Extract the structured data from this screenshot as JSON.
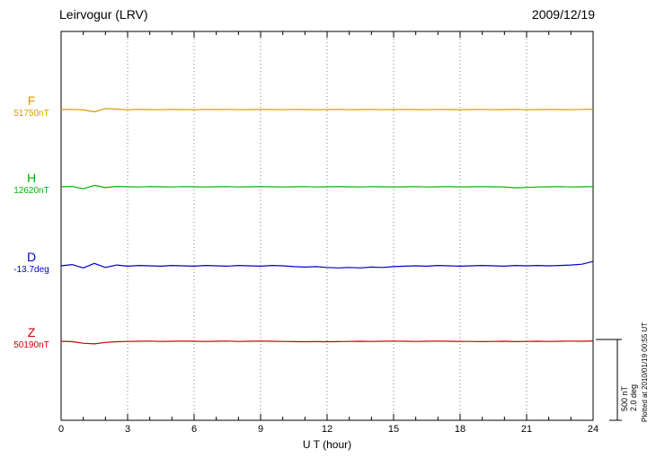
{
  "header": {
    "title": "Leirvogur (LRV)",
    "date": "2009/12/19"
  },
  "axis": {
    "xlabel": "U T (hour)",
    "xtick_labels": [
      "0",
      "3",
      "6",
      "9",
      "12",
      "15",
      "18",
      "21",
      "24"
    ]
  },
  "series_labels": [
    {
      "key": "F",
      "label": "F",
      "value": "51750nT",
      "color": "#DD9900"
    },
    {
      "key": "H",
      "label": "H",
      "value": "12620nT",
      "color": "#00B200"
    },
    {
      "key": "D",
      "label": "D",
      "value": "-13.7deg",
      "color": "#0000CC"
    },
    {
      "key": "Z",
      "label": "Z",
      "value": "50190nT",
      "color": "#CC0000"
    }
  ],
  "scale_bar": {
    "labels": [
      "500 nT",
      "2.0 deg"
    ]
  },
  "footer_note": "Plotted at 2010/01/19 00:55 UT",
  "chart_data": {
    "type": "line",
    "title": "Leirvogur (LRV) magnetogram 2009/12/19",
    "xlabel": "U T (hour)",
    "xlim": [
      0,
      24
    ],
    "xticks": [
      0,
      3,
      6,
      9,
      12,
      15,
      18,
      21,
      24
    ],
    "grid": "vertical-dotted",
    "legend_position": "left-margin",
    "x_step": 0.5,
    "scale_reference": {
      "nT_per_bar": 500,
      "deg_per_bar": 2.0
    },
    "series": [
      {
        "name": "F",
        "unit": "nT",
        "mean": 51750,
        "color": "#DD9900",
        "offsets": [
          0,
          1,
          -2,
          -14,
          6,
          3,
          -1,
          1,
          0,
          -1,
          1,
          0,
          -1,
          1,
          0,
          1,
          -1,
          0,
          1,
          0,
          -1,
          1,
          0,
          -1,
          0,
          1,
          -1,
          0,
          1,
          -1,
          0,
          1,
          0,
          -1,
          1,
          0,
          -1,
          0,
          1,
          -1,
          0,
          1,
          -1,
          0,
          1,
          0,
          -1,
          1,
          2
        ]
      },
      {
        "name": "H",
        "unit": "nT",
        "mean": 12620,
        "color": "#00B200",
        "offsets": [
          0,
          2,
          -12,
          9,
          -5,
          2,
          0,
          -1,
          1,
          0,
          -1,
          1,
          0,
          -1,
          0,
          1,
          -1,
          0,
          1,
          0,
          -1,
          0,
          1,
          -1,
          0,
          1,
          0,
          -1,
          1,
          0,
          -1,
          0,
          1,
          -1,
          0,
          1,
          -1,
          0,
          1,
          0,
          -1,
          -6,
          -4,
          -1,
          0,
          1,
          -1,
          0,
          1
        ]
      },
      {
        "name": "D",
        "unit": "deg",
        "mean": -13.7,
        "color": "#0000CC",
        "offsets": [
          0,
          0.03,
          -0.05,
          0.06,
          -0.04,
          0.02,
          -0.01,
          0.01,
          0,
          -0.01,
          0.01,
          0,
          -0.01,
          0.01,
          0,
          -0.01,
          0.01,
          0,
          -0.01,
          0.01,
          0,
          -0.02,
          -0.03,
          -0.02,
          -0.04,
          -0.05,
          -0.04,
          -0.05,
          -0.03,
          -0.04,
          -0.02,
          -0.01,
          0,
          -0.01,
          0.01,
          0,
          -0.01,
          0,
          0.01,
          0,
          -0.01,
          0.01,
          0,
          0.01,
          0,
          0.01,
          0.02,
          0.04,
          0.11
        ]
      },
      {
        "name": "Z",
        "unit": "nT",
        "mean": 50190,
        "color": "#CC0000",
        "offsets": [
          0,
          -2,
          -12,
          -16,
          -7,
          -3,
          -1,
          0,
          1,
          -1,
          0,
          1,
          0,
          -1,
          0,
          1,
          -1,
          0,
          1,
          0,
          -1,
          -2,
          -3,
          -2,
          -3,
          -2,
          -1,
          0,
          -1,
          0,
          1,
          0,
          -1,
          0,
          1,
          0,
          -1,
          -1,
          -2,
          -1,
          0,
          -2,
          -1,
          0,
          -1,
          0,
          1,
          0,
          2
        ]
      }
    ]
  }
}
